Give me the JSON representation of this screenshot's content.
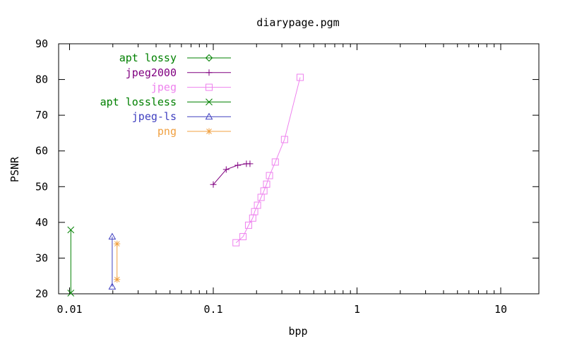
{
  "chart_data": {
    "type": "line",
    "title": "diarypage.pgm",
    "xlabel": "bpp",
    "ylabel": "PSNR",
    "xscale": "log",
    "xlim": [
      0.01,
      20
    ],
    "ylim": [
      20,
      90
    ],
    "xticks": [
      0.01,
      0.1,
      1,
      10
    ],
    "xtick_labels": [
      "0.01",
      "0.1",
      "1",
      "10"
    ],
    "yticks": [
      20,
      30,
      40,
      50,
      60,
      70,
      80,
      90
    ],
    "ytick_labels": [
      "20",
      "30",
      "40",
      "50",
      "60",
      "70",
      "80",
      "90"
    ],
    "grid": false,
    "legend_position": "top-left (inside)",
    "series": [
      {
        "name": "apt lossy",
        "color": "#008000",
        "marker": "diamond",
        "points": []
      },
      {
        "name": "jpeg2000",
        "color": "#800080",
        "marker": "plus",
        "points": [
          [
            0.1,
            50.6
          ],
          [
            0.123,
            54.8
          ],
          [
            0.148,
            56.0
          ],
          [
            0.17,
            56.4
          ],
          [
            0.18,
            56.4
          ]
        ]
      },
      {
        "name": "jpeg",
        "color": "#ee82ee",
        "marker": "square",
        "points": [
          [
            0.144,
            34.3
          ],
          [
            0.161,
            36.0
          ],
          [
            0.176,
            39.2
          ],
          [
            0.188,
            41.2
          ],
          [
            0.194,
            43.0
          ],
          [
            0.203,
            44.8
          ],
          [
            0.215,
            47.0
          ],
          [
            0.225,
            48.8
          ],
          [
            0.235,
            50.7
          ],
          [
            0.246,
            53.1
          ],
          [
            0.27,
            56.9
          ],
          [
            0.313,
            63.2
          ],
          [
            0.402,
            80.6
          ]
        ]
      },
      {
        "name": "apt lossless",
        "color": "#008000",
        "marker": "x",
        "points": [
          [
            0.0102,
            20.2
          ],
          [
            0.0102,
            37.9
          ]
        ]
      },
      {
        "name": "jpeg-ls",
        "color": "#4040c0",
        "marker": "triangle",
        "points": [
          [
            0.0198,
            22.0
          ],
          [
            0.0198,
            36.0
          ]
        ]
      },
      {
        "name": "png",
        "color": "#f0a040",
        "marker": "asterisk",
        "points": [
          [
            0.0214,
            24.0
          ],
          [
            0.0214,
            34.0
          ]
        ]
      }
    ]
  }
}
